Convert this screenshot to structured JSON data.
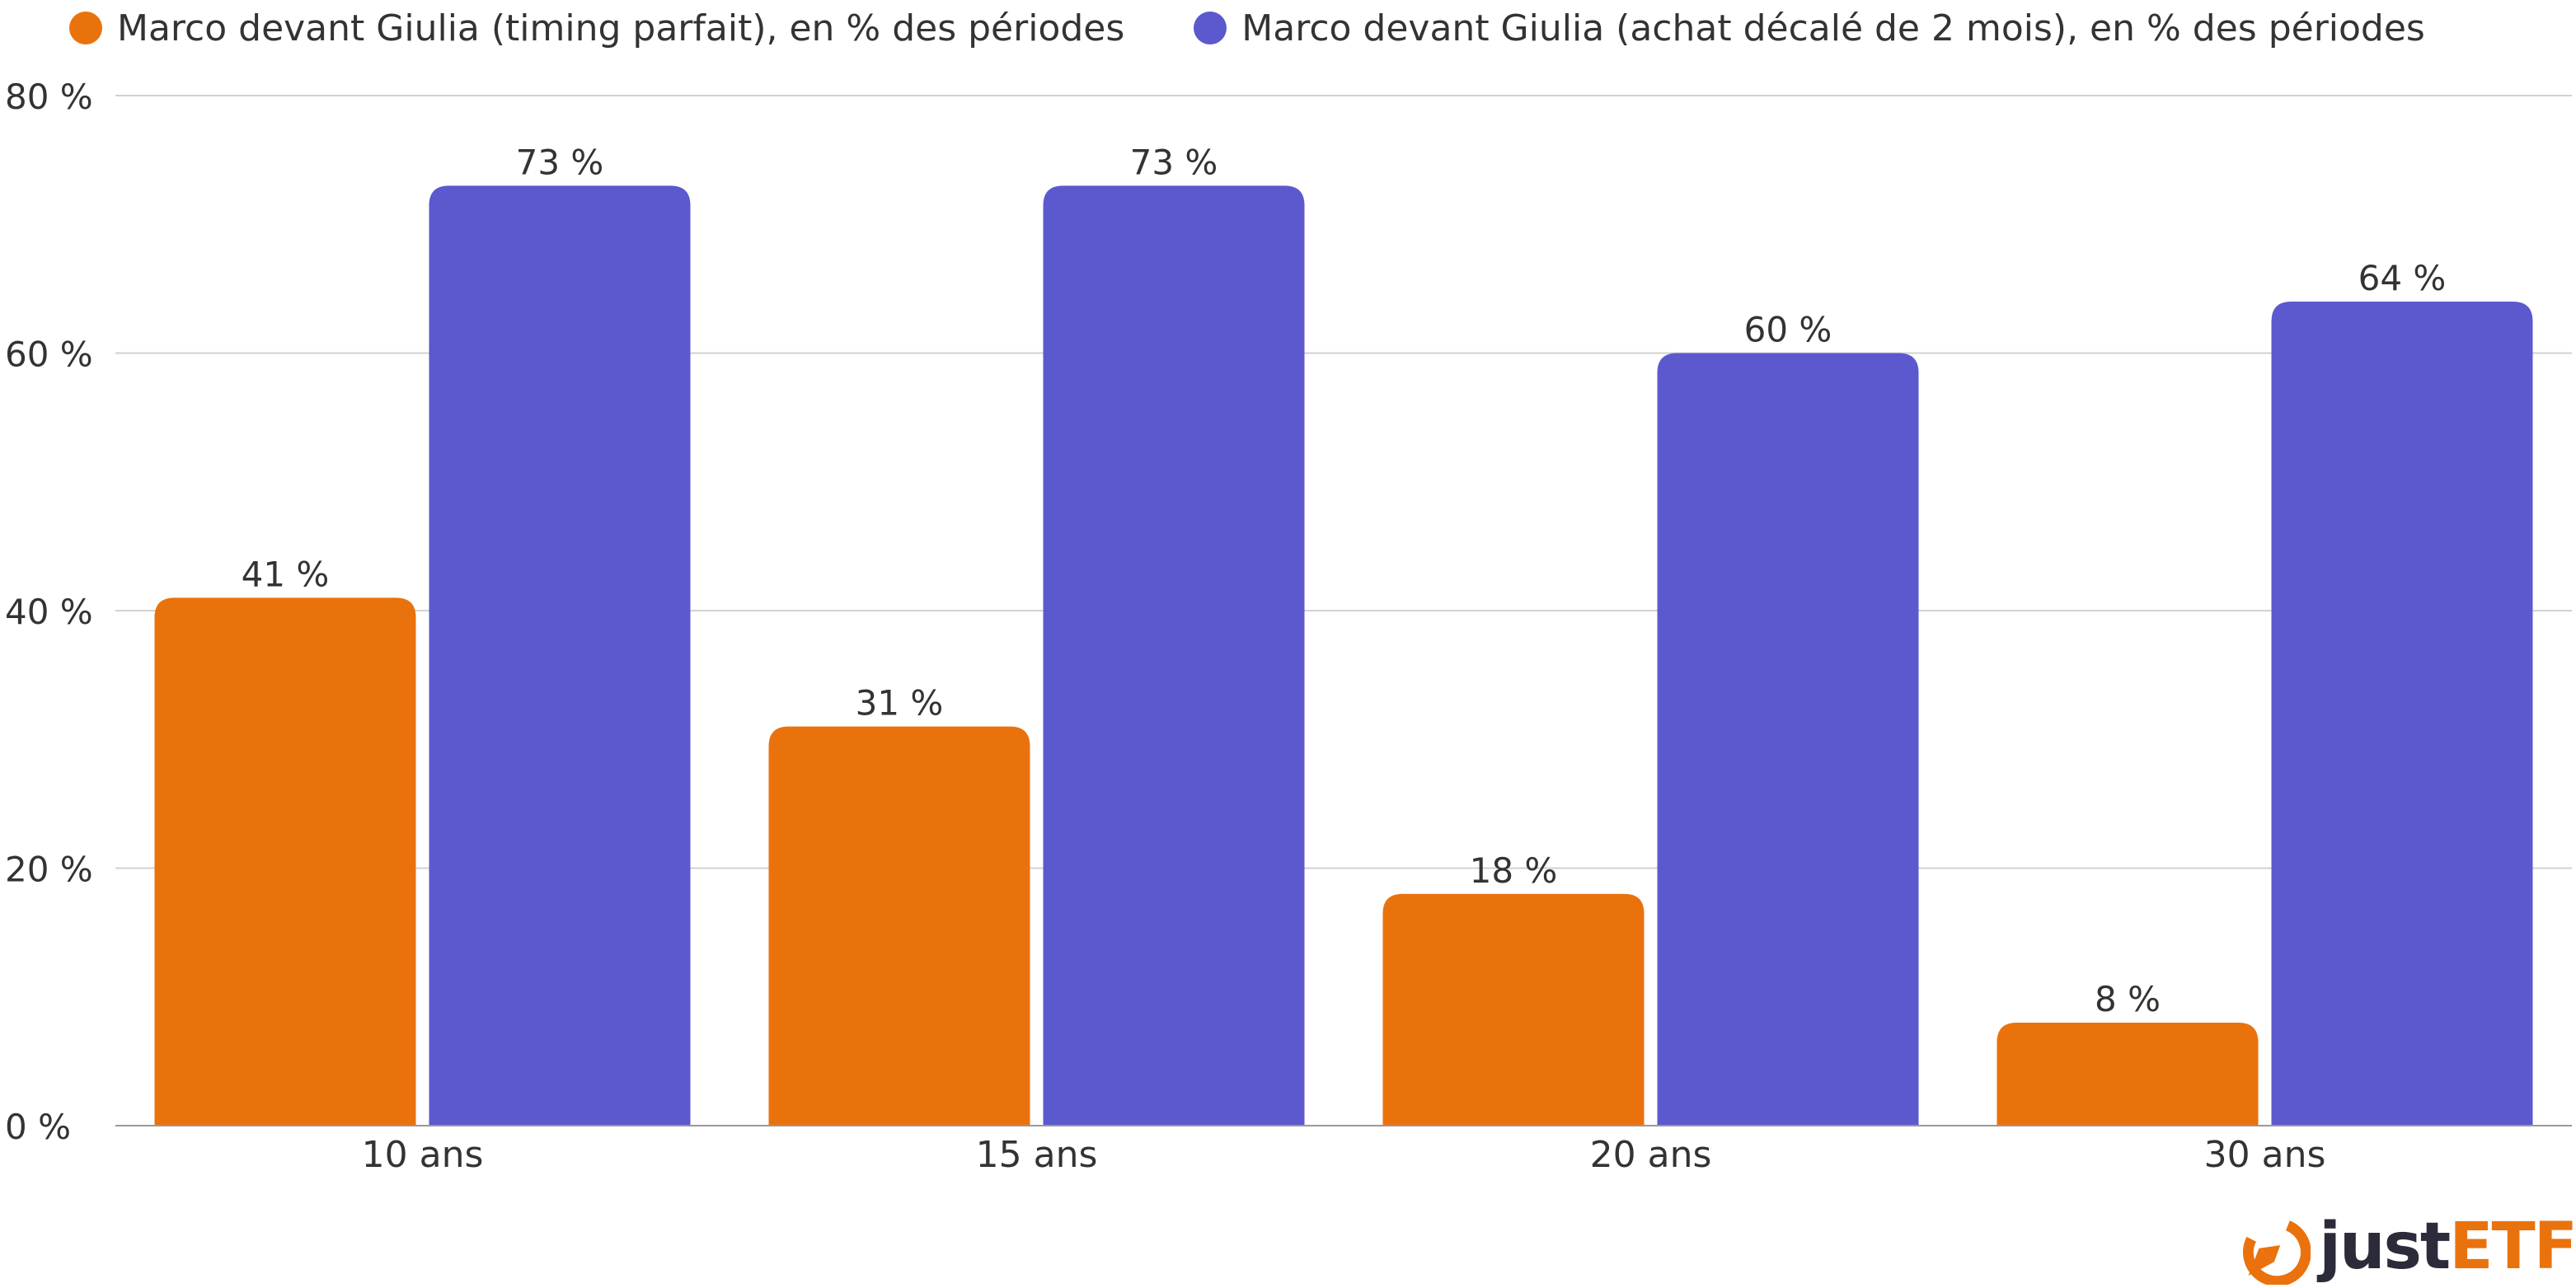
{
  "legend": {
    "items": [
      {
        "label": "Marco devant Giulia (timing parfait), en % des périodes",
        "color": "#ea720d"
      },
      {
        "label": "Marco devant Giulia (achat décalé de 2 mois), en % des périodes",
        "color": "#5b59cd"
      }
    ]
  },
  "brand": {
    "word_a": "just",
    "word_b": "ETF",
    "icon": "justetf-logo-icon",
    "color": "#ea720d"
  },
  "chart_data": {
    "type": "bar",
    "title": "",
    "xlabel": "",
    "ylabel": "",
    "categories": [
      "10 ans",
      "15 ans",
      "20 ans",
      "30 ans"
    ],
    "series": [
      {
        "name": "Marco devant Giulia (timing parfait), en % des périodes",
        "values": [
          41,
          31,
          18,
          8
        ],
        "labels": [
          "41 %",
          "31 %",
          "18 %",
          "8 %"
        ],
        "color": "#ea720d"
      },
      {
        "name": "Marco devant Giulia (achat décalé de 2 mois), en % des périodes",
        "values": [
          73,
          73,
          60,
          64
        ],
        "labels": [
          "73 %",
          "73 %",
          "60 %",
          "64 %"
        ],
        "color": "#5b59cd"
      }
    ],
    "ylim": [
      0,
      80
    ],
    "yticks": [
      0,
      20,
      40,
      60,
      80
    ],
    "ytick_labels": [
      "0 %",
      "20 %",
      "40 %",
      "60 %",
      "80 %"
    ],
    "grid": true,
    "legend_position": "top-left"
  }
}
